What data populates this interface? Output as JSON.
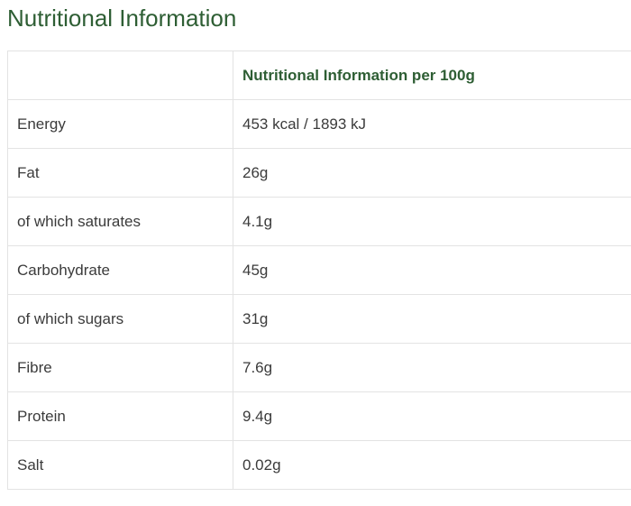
{
  "page": {
    "title": "Nutritional Information"
  },
  "table": {
    "header": [
      "",
      "Nutritional Information per 100g"
    ],
    "rows": [
      {
        "nutrient": "Energy",
        "value": "453 kcal / 1893 kJ"
      },
      {
        "nutrient": "Fat",
        "value": "26g"
      },
      {
        "nutrient": "of which saturates",
        "value": "4.1g"
      },
      {
        "nutrient": "Carbohydrate",
        "value": "45g"
      },
      {
        "nutrient": "of which sugars",
        "value": "31g"
      },
      {
        "nutrient": "Fibre",
        "value": "7.6g"
      },
      {
        "nutrient": "Protein",
        "value": "9.4g"
      },
      {
        "nutrient": "Salt",
        "value": "0.02g"
      }
    ]
  },
  "colors": {
    "heading_green": "#2e5e34",
    "body_text": "#3b3b3b",
    "border": "#e3e3e3",
    "background": "#ffffff"
  }
}
